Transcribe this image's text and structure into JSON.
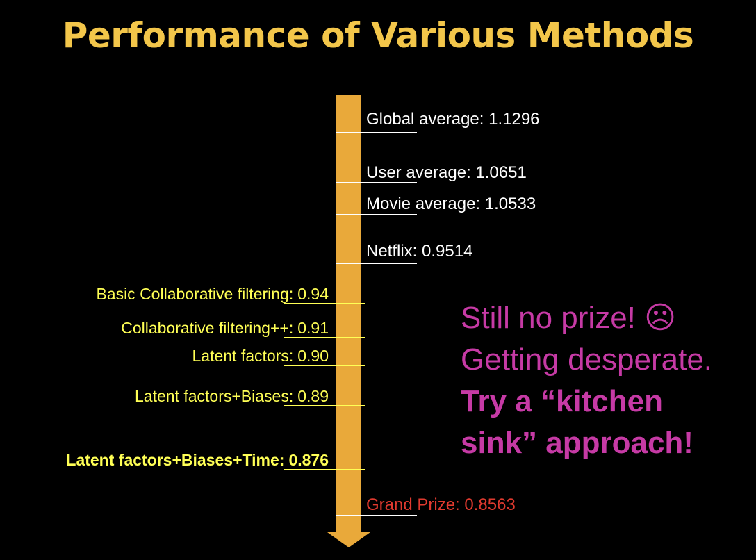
{
  "title": "Performance of Various Methods",
  "colors": {
    "background": "#000000",
    "title": "#F3C64A",
    "arrow": "#E9A93A",
    "right_labels": "#FFFFFF",
    "left_labels": "#FFFF55",
    "grand_prize": "#E03A2F",
    "callout": "#C63AA5"
  },
  "icons": {
    "arrow": "down-arrow-icon"
  },
  "right_markers": [
    {
      "label": "Global average: 1.1296"
    },
    {
      "label": "User average: 1.0651"
    },
    {
      "label": "Movie average: 1.0533"
    },
    {
      "label": "Netflix: 0.9514"
    },
    {
      "label": "Grand Prize: 0.8563"
    }
  ],
  "left_markers": [
    {
      "label": "Basic Collaborative filtering:",
      "value": "0.94"
    },
    {
      "label": "Collaborative filtering++:",
      "value": "0.91"
    },
    {
      "label": "Latent factors:",
      "value": "0.90"
    },
    {
      "label": "Latent factors+Biases:",
      "value": "0.89"
    },
    {
      "label": "Latent factors+Biases+Time:",
      "value": "0.876"
    }
  ],
  "callout": {
    "line1": "Still no prize! ☹",
    "line2": "Getting desperate.",
    "line3": "Try a “kitchen",
    "line4": "sink” approach!"
  }
}
